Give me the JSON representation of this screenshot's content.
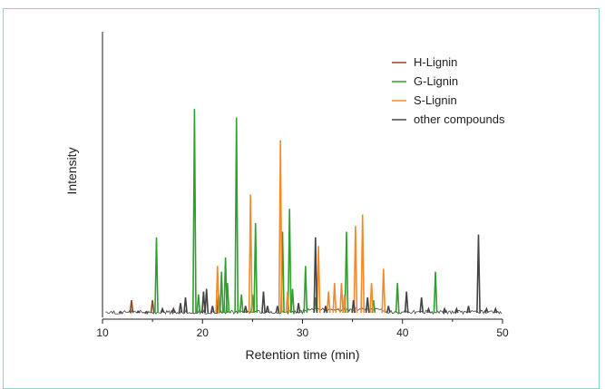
{
  "chart_data": {
    "type": "line",
    "xlabel": "Retention time (min)",
    "ylabel": "Intensity",
    "xlim": [
      10,
      50
    ],
    "ylim": [
      0,
      100
    ],
    "x_ticks": [
      "10",
      "20",
      "30",
      "40",
      "50"
    ],
    "legend_position": "top-right",
    "series": [
      {
        "name": "H-Lignin",
        "color": "#8b4a2b",
        "peaks": [
          [
            12.9,
            6
          ],
          [
            15.0,
            6
          ],
          [
            21.6,
            8
          ]
        ]
      },
      {
        "name": "G-Lignin",
        "color": "#2ea02c",
        "peaks": [
          [
            15.4,
            28
          ],
          [
            19.2,
            73
          ],
          [
            19.6,
            8
          ],
          [
            21.9,
            16
          ],
          [
            22.3,
            21
          ],
          [
            22.5,
            12
          ],
          [
            23.4,
            70
          ],
          [
            23.9,
            8
          ],
          [
            25.0,
            8
          ],
          [
            25.3,
            33
          ],
          [
            28.0,
            30
          ],
          [
            28.7,
            38
          ],
          [
            29.0,
            10
          ],
          [
            30.3,
            18
          ],
          [
            31.3,
            7
          ],
          [
            34.4,
            30
          ],
          [
            37.1,
            6
          ],
          [
            39.5,
            12
          ],
          [
            43.3,
            16
          ]
        ]
      },
      {
        "name": "S-Lignin",
        "color": "#f08a2c",
        "peaks": [
          [
            21.5,
            18
          ],
          [
            24.8,
            43
          ],
          [
            27.8,
            62
          ],
          [
            28.5,
            9
          ],
          [
            31.6,
            25
          ],
          [
            32.6,
            9
          ],
          [
            33.2,
            12
          ],
          [
            33.9,
            12
          ],
          [
            34.2,
            8
          ],
          [
            35.3,
            32
          ],
          [
            36.0,
            36
          ],
          [
            36.9,
            12
          ],
          [
            38.1,
            17
          ]
        ]
      },
      {
        "name": "other compounds",
        "color": "#444444",
        "peaks": [
          [
            11.8,
            2
          ],
          [
            13.6,
            2
          ],
          [
            14.4,
            2
          ],
          [
            16.0,
            3
          ],
          [
            17.1,
            3
          ],
          [
            17.8,
            5
          ],
          [
            18.3,
            7
          ],
          [
            20.1,
            9
          ],
          [
            20.4,
            10
          ],
          [
            21.0,
            4
          ],
          [
            24.3,
            4
          ],
          [
            26.1,
            9
          ],
          [
            26.5,
            4
          ],
          [
            27.5,
            4
          ],
          [
            29.6,
            5
          ],
          [
            31.3,
            28
          ],
          [
            32.3,
            4
          ],
          [
            35.1,
            6
          ],
          [
            36.5,
            7
          ],
          [
            38.6,
            4
          ],
          [
            40.4,
            9
          ],
          [
            41.9,
            7
          ],
          [
            42.6,
            3
          ],
          [
            44.2,
            3
          ],
          [
            45.4,
            3
          ],
          [
            46.6,
            4
          ],
          [
            47.6,
            29
          ],
          [
            48.4,
            3
          ],
          [
            49.3,
            3
          ]
        ]
      }
    ],
    "solvent_front": {
      "x": 10.0,
      "y": 100
    }
  }
}
